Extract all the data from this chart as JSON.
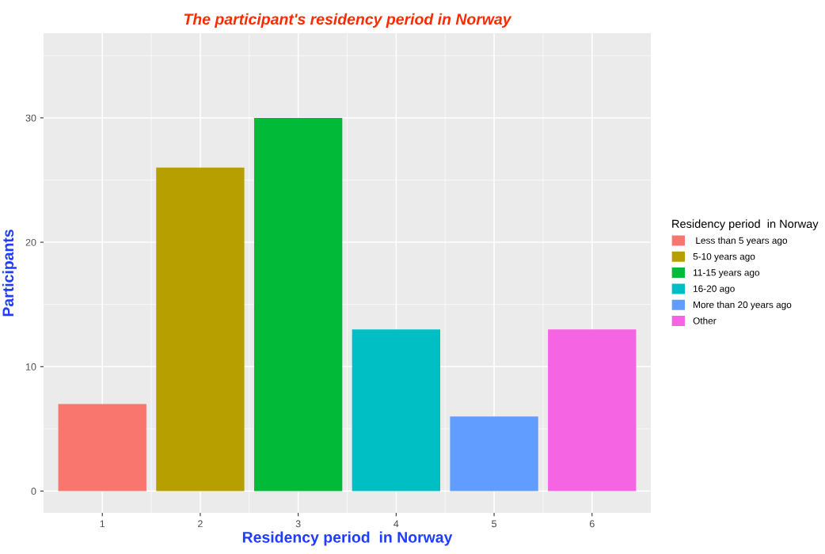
{
  "chart_data": {
    "type": "bar",
    "title": "The participant's residency period in Norway",
    "xlabel": "Residency period  in Norway",
    "ylabel": "Participants",
    "legend_title": "Residency period  in Norway",
    "series": [
      {
        "name": " Less than 5 years ago",
        "color": "#f8766d",
        "x": [
          1
        ],
        "values": [
          7
        ]
      },
      {
        "name": "5-10 years ago",
        "color": "#b79f00",
        "x": [
          2
        ],
        "values": [
          26
        ]
      },
      {
        "name": "11-15 years ago",
        "color": "#00ba38",
        "x": [
          3
        ],
        "values": [
          30
        ]
      },
      {
        "name": "16-20 ago",
        "color": "#00bfc4",
        "x": [
          4
        ],
        "values": [
          13
        ]
      },
      {
        "name": "More than 20 years ago",
        "color": "#619cff",
        "x": [
          5
        ],
        "values": [
          6
        ]
      },
      {
        "name": "Other",
        "color": "#f564e3",
        "x": [
          6
        ],
        "values": [
          13
        ]
      }
    ],
    "xlim": [
      0.4,
      6.6
    ],
    "xticks": [
      1,
      2,
      3,
      4,
      5,
      6
    ],
    "ylim": [
      -1.75,
      36.8
    ],
    "yticks": [
      0,
      10,
      20,
      30
    ],
    "grid": true,
    "legend": "right"
  }
}
